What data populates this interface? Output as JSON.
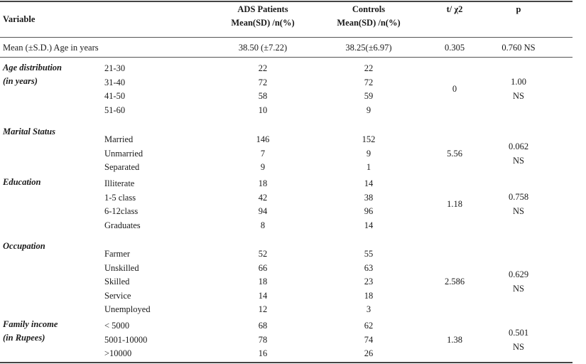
{
  "header": {
    "variable": "Variable",
    "ads_line1": "ADS Patients",
    "ads_line2": "Mean(SD) /n(%)",
    "ctrl_line1": "Controls",
    "ctrl_line2": "Mean(SD) /n(%)",
    "stat": "t/ χ2",
    "p": "p"
  },
  "age_row": {
    "label": "Mean (±S.D.) Age in years",
    "ads": "38.50 (±7.22)",
    "ctrl": "38.25(±6.97)",
    "stat": "0.305",
    "p": "0.760 NS"
  },
  "sections": [
    {
      "title": "Age distribution",
      "title2": "(in years)",
      "stat": "0",
      "p1": "1.00",
      "p2": "NS",
      "rows": [
        {
          "label": "21-30",
          "ads": "22",
          "ctrl": "22"
        },
        {
          "label": "31-40",
          "ads": "72",
          "ctrl": "72"
        },
        {
          "label": "41-50",
          "ads": "58",
          "ctrl": "59"
        },
        {
          "label": "51-60",
          "ads": "10",
          "ctrl": "9"
        }
      ]
    },
    {
      "title": "Marital Status",
      "title2": "",
      "stat": "5.56",
      "p1": "0.062",
      "p2": "NS",
      "rows": [
        {
          "label": "Married",
          "ads": "146",
          "ctrl": "152"
        },
        {
          "label": "Unmarried",
          "ads": "7",
          "ctrl": "9"
        },
        {
          "label": "Separated",
          "ads": "9",
          "ctrl": "1"
        }
      ]
    },
    {
      "title": "Education",
      "title2": "",
      "stat": "1.18",
      "p1": "0.758",
      "p2": "NS",
      "rows": [
        {
          "label": "Illiterate",
          "ads": "18",
          "ctrl": "14"
        },
        {
          "label": "1-5 class",
          "ads": "42",
          "ctrl": "38"
        },
        {
          "label": "6-12class",
          "ads": "94",
          "ctrl": "96"
        },
        {
          "label": "Graduates",
          "ads": "8",
          "ctrl": "14"
        }
      ]
    },
    {
      "title": "Occupation",
      "title2": "",
      "stat": "2.586",
      "p1": "0.629",
      "p2": "NS",
      "rows": [
        {
          "label": "Farmer",
          "ads": "52",
          "ctrl": "55"
        },
        {
          "label": "Unskilled",
          "ads": "66",
          "ctrl": "63"
        },
        {
          "label": "Skilled",
          "ads": "18",
          "ctrl": "23"
        },
        {
          "label": "Service",
          "ads": "14",
          "ctrl": "18"
        },
        {
          "label": "Unemployed",
          "ads": "12",
          "ctrl": "3"
        }
      ]
    },
    {
      "title": "Family income",
      "title2": "(in Rupees)",
      "stat": "1.38",
      "p1": "0.501",
      "p2": "NS",
      "rows": [
        {
          "label": "< 5000",
          "ads": "68",
          "ctrl": "62"
        },
        {
          "label": "5001-10000",
          "ads": "78",
          "ctrl": "74"
        },
        {
          "label": ">10000",
          "ads": "16",
          "ctrl": "26"
        }
      ]
    }
  ]
}
